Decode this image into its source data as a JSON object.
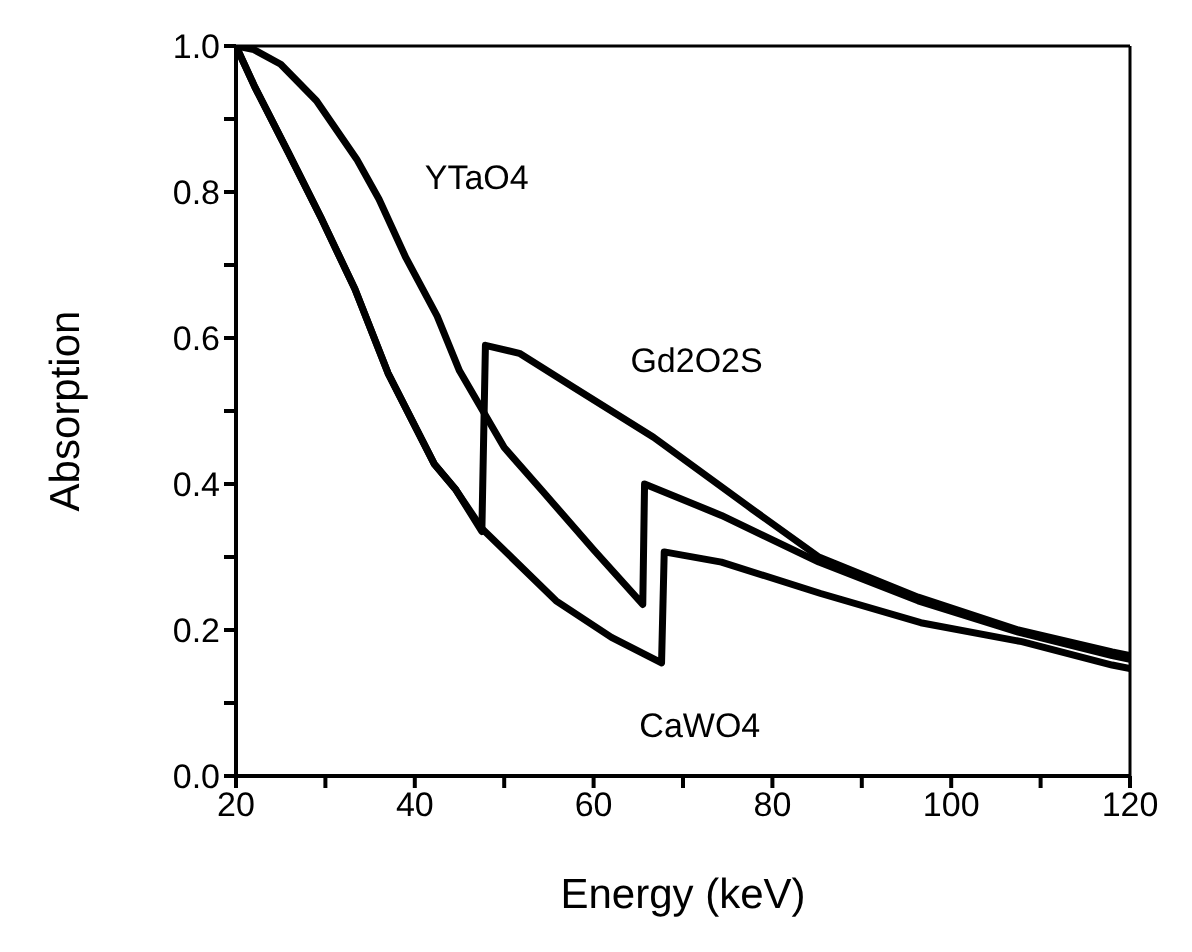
{
  "chart_data": {
    "type": "line",
    "xlabel": "Energy  (keV)",
    "ylabel": "Absorption",
    "xlim": [
      20,
      120
    ],
    "ylim": [
      0,
      1
    ],
    "xticks": [
      20,
      {
        "value": 30,
        "label": null
      },
      40,
      {
        "value": 50,
        "label": null
      },
      60,
      {
        "value": 70,
        "label": null
      },
      80,
      {
        "value": 90,
        "label": null
      },
      100,
      {
        "value": 110,
        "label": null
      },
      120
    ],
    "yticks": [
      {
        "value": 0,
        "label": "0.0"
      },
      {
        "value": 0.1,
        "label": null
      },
      0.2,
      {
        "value": 0.3,
        "label": null
      },
      0.4,
      {
        "value": 0.5,
        "label": null
      },
      0.6,
      {
        "value": 0.7,
        "label": null
      },
      0.8,
      {
        "value": 0.9,
        "label": null
      },
      {
        "value": 1,
        "label": "1.0"
      }
    ],
    "marker": "none",
    "line_style": "solid",
    "series": [
      {
        "name": "YTaO4",
        "color": "#000000",
        "x": [
          20,
          22,
          25,
          29,
          33.5,
          36,
          39,
          42.5,
          45,
          50,
          54.3,
          60,
          65.5,
          65.7,
          74.3,
          85.2,
          96.3,
          107.5,
          118,
          120
        ],
        "values": [
          1.0,
          0.995,
          0.975,
          0.925,
          0.845,
          0.79,
          0.71,
          0.63,
          0.555,
          0.45,
          0.39,
          0.31,
          0.235,
          0.4,
          0.357,
          0.293,
          0.24,
          0.197,
          0.165,
          0.16
        ]
      },
      {
        "name": "Gd2O2S",
        "color": "#000000",
        "x": [
          20,
          22.1,
          25.9,
          29.5,
          33.3,
          37,
          42.2,
          44.6,
          47.5,
          47.9,
          51.7,
          57.7,
          66.7,
          77.8,
          85.2,
          96.3,
          107.5,
          118,
          120
        ],
        "values": [
          1.0,
          0.944,
          0.853,
          0.765,
          0.667,
          0.552,
          0.427,
          0.392,
          0.335,
          0.59,
          0.579,
          0.533,
          0.464,
          0.365,
          0.3,
          0.245,
          0.2,
          0.17,
          0.165
        ]
      },
      {
        "name": "CaWO4",
        "color": "#000000",
        "x": [
          20,
          22.1,
          25.9,
          29.5,
          33.3,
          37,
          42.2,
          44.6,
          47.5,
          55.8,
          62,
          67.6,
          67.9,
          74.3,
          85.4,
          96.6,
          107.9,
          118,
          120
        ],
        "values": [
          1.0,
          0.944,
          0.853,
          0.765,
          0.667,
          0.552,
          0.427,
          0.392,
          0.339,
          0.24,
          0.19,
          0.155,
          0.307,
          0.293,
          0.25,
          0.21,
          0.184,
          0.152,
          0.147
        ]
      }
    ]
  }
}
